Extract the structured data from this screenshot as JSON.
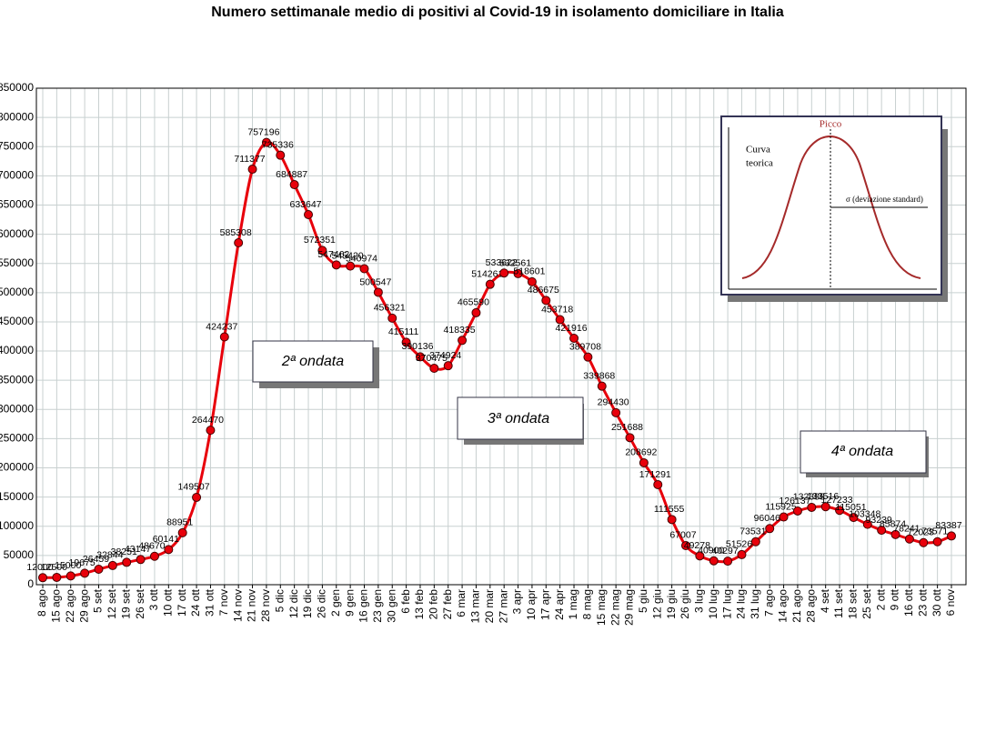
{
  "chart_data": {
    "type": "line",
    "title": "Numero settimanale medio di positivi al Covid-19  in isolamento domiciliare in Italia",
    "categories": [
      "8 ago",
      "15 ago",
      "22 ago",
      "29 ago",
      "5 set",
      "12 set",
      "19 set",
      "26 set",
      "3 ott",
      "10 ott",
      "17 ott",
      "24 ott",
      "31 ott",
      "7 nov",
      "14 nov",
      "21 nov",
      "28 nov",
      "5 dic",
      "12 dic",
      "19 dic",
      "26 dic",
      "2 gen",
      "9 gen",
      "16 gen",
      "23 gen",
      "30 gen",
      "6 feb",
      "13 feb",
      "20 feb",
      "27 feb",
      "6 mar",
      "13 mar",
      "20 mar",
      "27 mar",
      "3 apr",
      "10 apr",
      "17 apr",
      "24 apr",
      "1 mag",
      "8 mag",
      "15 mag",
      "22 mag",
      "29 mag",
      "5 giu",
      "12 giu",
      "19 giu",
      "26 giu",
      "3 lug",
      "10 lug",
      "17 lug",
      "24 lug",
      "31 lug",
      "7 ago",
      "14 ago",
      "21 ago",
      "28 ago",
      "4 set",
      "11 set",
      "18 set",
      "25 set",
      "2 ott",
      "9 ott",
      "16 ott",
      "23 ott",
      "30 ott",
      "6 nov"
    ],
    "series": [
      {
        "color": "#e8000b",
        "values": [
          12000,
          12500,
          15000,
          19675,
          26459,
          32844,
          38251,
          43147,
          48670,
          60141,
          88951,
          149507,
          264470,
          424237,
          585308,
          711377,
          757196,
          735336,
          684887,
          633647,
          572351,
          547462,
          545420,
          540974,
          500547,
          456321,
          415111,
          390136,
          370475,
          374924,
          418335,
          465590,
          514261,
          533622,
          532561,
          518601,
          486675,
          453718,
          421916,
          389708,
          339868,
          294430,
          251688,
          208692,
          171291,
          111555,
          67007,
          49278,
          40900,
          40297,
          51526,
          73531,
          96046,
          115925,
          126137,
          132388,
          133516,
          127233,
          115051,
          103348,
          93239,
          85874,
          78241,
          72023,
          73571,
          83387
        ]
      }
    ],
    "ylim": [
      0,
      850000
    ],
    "yticks": [
      0,
      50000,
      100000,
      150000,
      200000,
      250000,
      300000,
      350000,
      400000,
      450000,
      500000,
      550000,
      600000,
      650000,
      700000,
      750000,
      800000,
      850000
    ],
    "grid": true,
    "annotations": [
      "2ª ondata",
      "3ª ondata",
      "4ª ondata"
    ],
    "inset": {
      "title": "Picco",
      "label": [
        "Curva",
        "teorica"
      ],
      "sigma_label": "σ  (deviazione standard)"
    }
  }
}
